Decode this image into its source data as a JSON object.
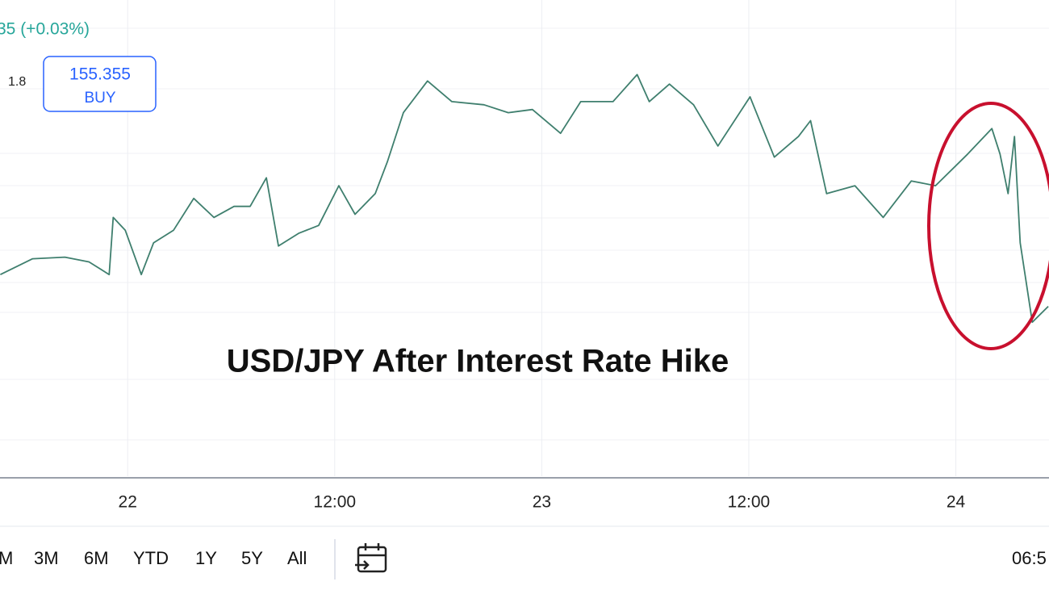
{
  "header": {
    "change": "35 (+0.03%)",
    "value": "1.8",
    "buy_price": "155.355",
    "buy_label": "BUY"
  },
  "chart_data": {
    "type": "line",
    "annotation": "USD/JPY After Interest Rate Hike",
    "color": "#3f7f6e",
    "x": [
      -7.38,
      -5.51,
      -3.64,
      -2.24,
      -1.07,
      -0.84,
      -0.14,
      0.79,
      1.5,
      2.66,
      3.83,
      5.0,
      6.17,
      7.1,
      8.04,
      8.74,
      9.91,
      11.07,
      12.24,
      13.18,
      14.35,
      15.05,
      15.98,
      17.38,
      18.79,
      20.65,
      22.06,
      23.46,
      25.09,
      26.26,
      28.13,
      29.53,
      30.23,
      31.4,
      32.8,
      34.21,
      36.07,
      37.48,
      38.88,
      39.58,
      40.51,
      42.15,
      43.79,
      45.42,
      46.82,
      48.69,
      50.09,
      50.56,
      51.03,
      51.4,
      51.73,
      52.43,
      53.36
    ],
    "series": [
      {
        "name": "USD/JPY",
        "color": "#3f7f6e",
        "values": [
          154.27,
          154.37,
          154.38,
          154.35,
          154.27,
          154.63,
          154.55,
          154.27,
          154.47,
          154.55,
          154.75,
          154.63,
          154.7,
          154.7,
          154.88,
          154.45,
          154.53,
          154.58,
          154.83,
          154.65,
          154.78,
          154.98,
          155.29,
          155.49,
          155.36,
          155.34,
          155.29,
          155.31,
          155.16,
          155.36,
          155.36,
          155.53,
          155.36,
          155.47,
          155.34,
          155.08,
          155.39,
          155.01,
          155.14,
          155.24,
          154.78,
          154.83,
          154.63,
          154.86,
          154.83,
          155.03,
          155.19,
          155.03,
          154.78,
          155.14,
          154.47,
          153.97,
          154.07
        ]
      }
    ],
    "xlim": [
      -7.4,
      53.4
    ],
    "ylim": [
      153.0,
      156.0
    ],
    "xticks": [
      {
        "value": 0,
        "label": "22"
      },
      {
        "value": 12,
        "label": "12:00"
      },
      {
        "value": 24,
        "label": "23"
      },
      {
        "value": 36,
        "label": "12:00"
      },
      {
        "value": 48,
        "label": "24"
      }
    ],
    "grid": true
  },
  "toolbar": {
    "ranges": [
      "M",
      "3M",
      "6M",
      "YTD",
      "1Y",
      "5Y",
      "All"
    ],
    "time": "06:5"
  }
}
